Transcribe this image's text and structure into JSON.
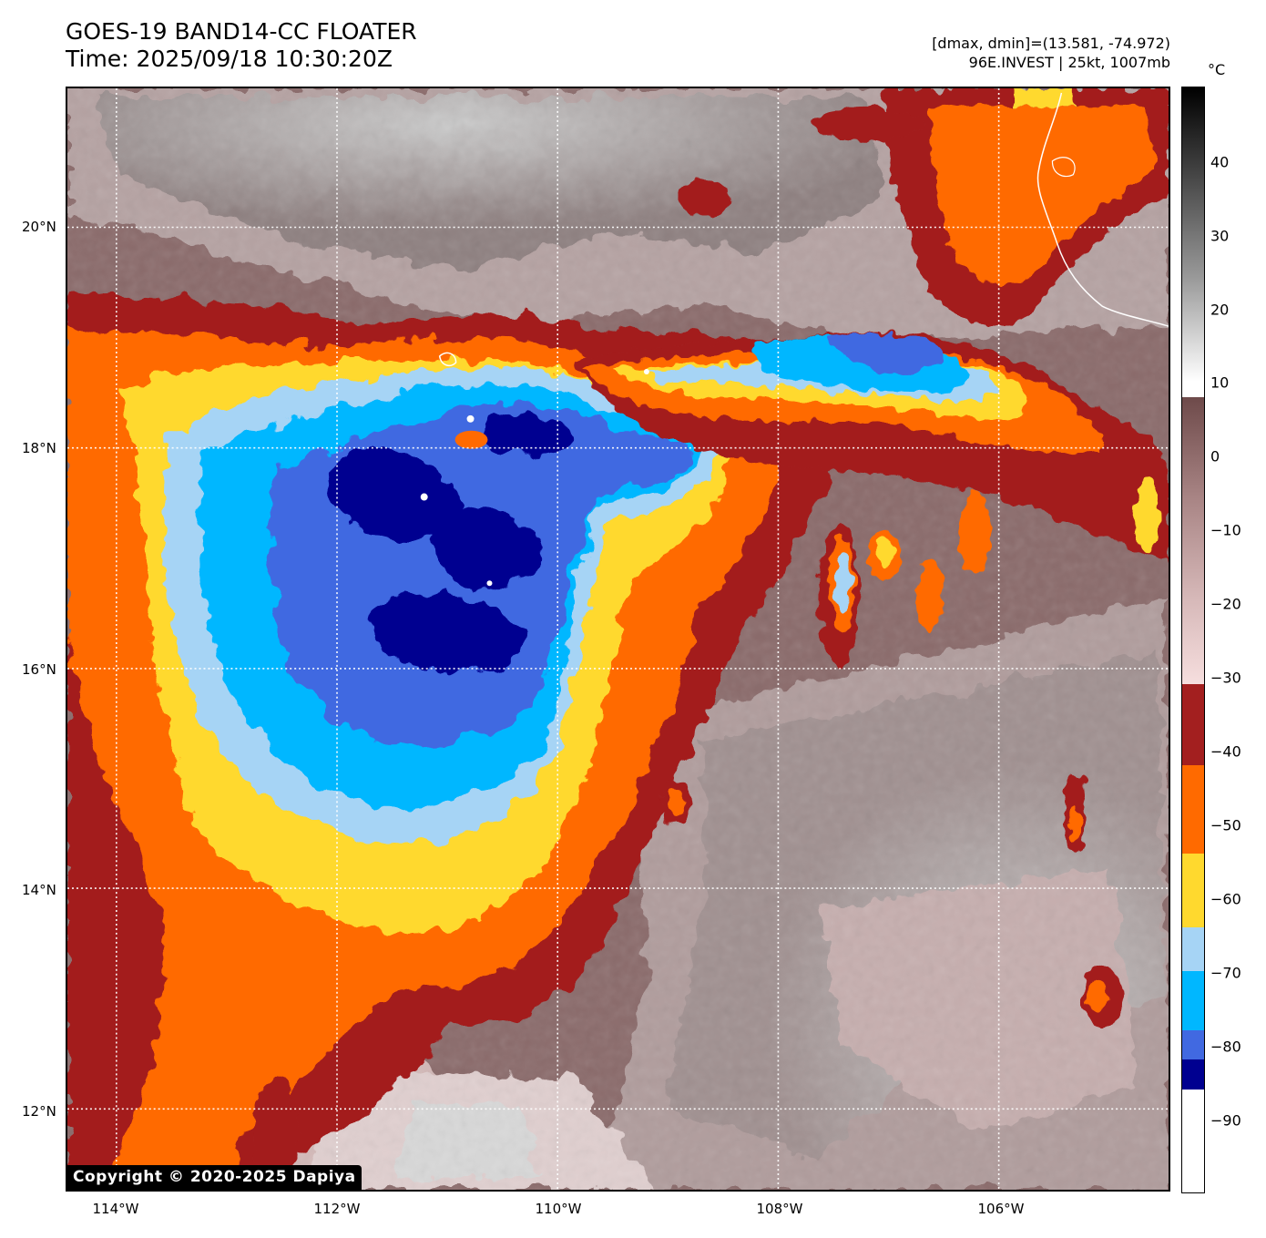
{
  "header": {
    "title_line1": "GOES-19 BAND14-CC FLOATER",
    "title_line2": "Time: 2025/09/18 10:30:20Z",
    "info_line1": "[dmax, dmin]=(13.581, -74.972)",
    "info_line2": "96E.INVEST | 25kt, 1007mb"
  },
  "map": {
    "lat_labels": [
      "20°N",
      "18°N",
      "16°N",
      "14°N",
      "12°N"
    ],
    "lon_labels": [
      "114°W",
      "112°W",
      "110°W",
      "108°W",
      "106°W"
    ],
    "lat_range": [
      11.3,
      21.3
    ],
    "lon_range": [
      114.5,
      104.5
    ],
    "copyright": "Copyright © 2020-2025 Dapiya"
  },
  "colorbar": {
    "unit": "°C",
    "ticks": [
      "40",
      "30",
      "20",
      "10",
      "0",
      "−10",
      "−20",
      "−30",
      "−40",
      "−50",
      "−60",
      "−70",
      "−80",
      "−90"
    ],
    "range": [
      -100,
      50
    ],
    "bands": [
      {
        "from": 50,
        "to": 10,
        "color": "gradient-gray"
      },
      {
        "from": 8,
        "to": -31,
        "color": "gradient-brown-pink"
      },
      {
        "from": -31,
        "to": -42,
        "color": "#a31f1f"
      },
      {
        "from": -42,
        "to": -54,
        "color": "#ff6a00"
      },
      {
        "from": -54,
        "to": -64,
        "color": "#ffd92e"
      },
      {
        "from": -64,
        "to": -70,
        "color": "#a6d4f5"
      },
      {
        "from": -70,
        "to": -78,
        "color": "#00b7ff"
      },
      {
        "from": -78,
        "to": -82,
        "color": "#4169e1"
      },
      {
        "from": -82,
        "to": -86,
        "color": "#000090"
      },
      {
        "from": -86,
        "to": -100,
        "color": "#ffffff"
      }
    ]
  },
  "colors": {
    "dark_red": "#a31f1f",
    "orange": "#ff6a00",
    "yellow": "#ffd92e",
    "light_blue": "#a6d4f5",
    "sky_blue": "#00b7ff",
    "royal_blue": "#4169e1",
    "navy": "#000090",
    "brown": "#7a5555",
    "pink": "#d8b2b0",
    "gray": "#a8a8a8"
  }
}
